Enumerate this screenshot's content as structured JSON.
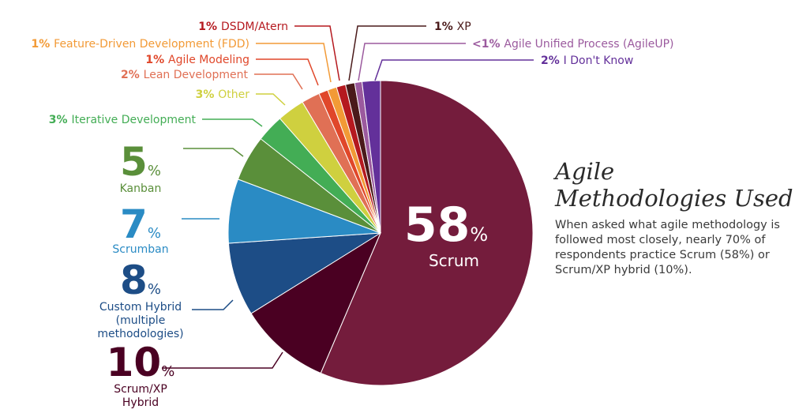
{
  "chart_data": {
    "type": "pie",
    "title": "Agile Methodologies Used",
    "description": "When asked what agile methodology is followed most closely, nearly 70% of respondents practice Scrum (58%) or Scrum/XP hybrid (10%).",
    "slices": [
      {
        "label": "Scrum",
        "percent_text": "58",
        "value": 58,
        "color": "#741c3c"
      },
      {
        "label": "Scrum/XP Hybrid",
        "percent_text": "10",
        "value": 10,
        "color": "#4a0022"
      },
      {
        "label": "Custom Hybrid (multiple methodologies)",
        "percent_text": "8",
        "value": 8,
        "color": "#1d4d86"
      },
      {
        "label": "Scrumban",
        "percent_text": "7",
        "value": 7,
        "color": "#2a8bc4"
      },
      {
        "label": "Kanban",
        "percent_text": "5",
        "value": 5,
        "color": "#5a8f3a"
      },
      {
        "label": "Iterative Development",
        "percent_text": "3%",
        "value": 3,
        "color": "#43ad55"
      },
      {
        "label": "Other",
        "percent_text": "3%",
        "value": 3,
        "color": "#cfd03f"
      },
      {
        "label": "Lean Development",
        "percent_text": "2%",
        "value": 2,
        "color": "#e07055"
      },
      {
        "label": "Agile Modeling",
        "percent_text": "1%",
        "value": 1,
        "color": "#e0472a"
      },
      {
        "label": "Feature-Driven Development (FDD)",
        "percent_text": "1%",
        "value": 1,
        "color": "#f29a36"
      },
      {
        "label": "DSDM/Atern",
        "percent_text": "1%",
        "value": 1,
        "color": "#b5191f"
      },
      {
        "label": "XP",
        "percent_text": "1%",
        "value": 1,
        "color": "#4a1a1a"
      },
      {
        "label": "Agile Unified Process (AgileUP)",
        "percent_text": "<1%",
        "value": 0.8,
        "color": "#9b5a9e"
      },
      {
        "label": "I Don't Know",
        "percent_text": "2%",
        "value": 2,
        "color": "#63309a"
      }
    ],
    "percent_sign": "%"
  }
}
